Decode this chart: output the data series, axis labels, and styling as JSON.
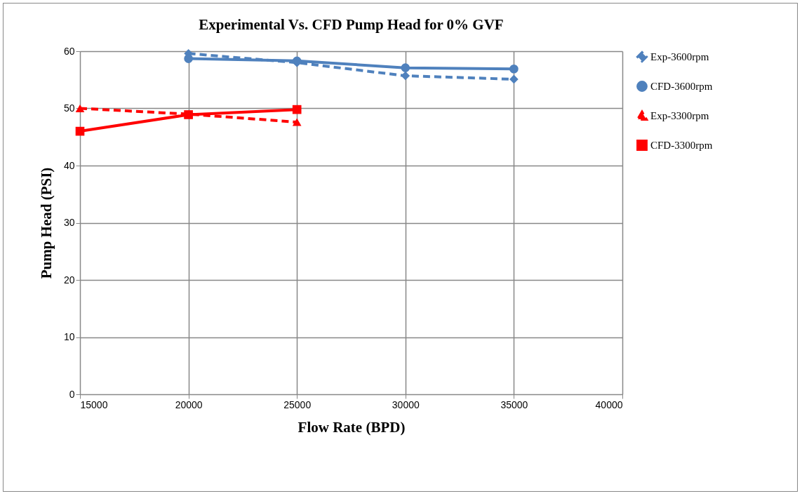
{
  "chart_data": {
    "type": "line",
    "title": "Experimental Vs. CFD Pump Head for 0% GVF",
    "xlabel": "Flow Rate (BPD)",
    "ylabel": "Pump Head (PSI)",
    "xlim": [
      15000,
      40000
    ],
    "xticks": [
      15000,
      20000,
      25000,
      30000,
      35000,
      40000
    ],
    "ylim": [
      0,
      60
    ],
    "yticks": [
      0,
      10,
      20,
      30,
      40,
      50,
      60
    ],
    "grid": true,
    "legend": "right",
    "series": [
      {
        "name": "Exp-3600rpm",
        "color": "#4f81bd",
        "marker": "diamond",
        "line_style": "dashed",
        "x": [
          20000,
          25000,
          30000,
          35000
        ],
        "values": [
          59.6,
          58.0,
          55.7,
          55.1
        ]
      },
      {
        "name": "CFD-3600rpm",
        "color": "#4f81bd",
        "marker": "circle",
        "line_style": "solid",
        "x": [
          20000,
          25000,
          30000,
          35000
        ],
        "values": [
          58.7,
          58.3,
          57.1,
          56.9
        ]
      },
      {
        "name": "Exp-3300rpm",
        "color": "#ff0000",
        "marker": "triangle",
        "line_style": "dashed",
        "x": [
          15000,
          20000,
          25000
        ],
        "values": [
          50.0,
          49.0,
          47.6
        ]
      },
      {
        "name": "CFD-3300rpm",
        "color": "#ff0000",
        "marker": "square",
        "line_style": "solid",
        "x": [
          15000,
          20000,
          25000
        ],
        "values": [
          46.0,
          48.9,
          49.8
        ]
      }
    ]
  }
}
